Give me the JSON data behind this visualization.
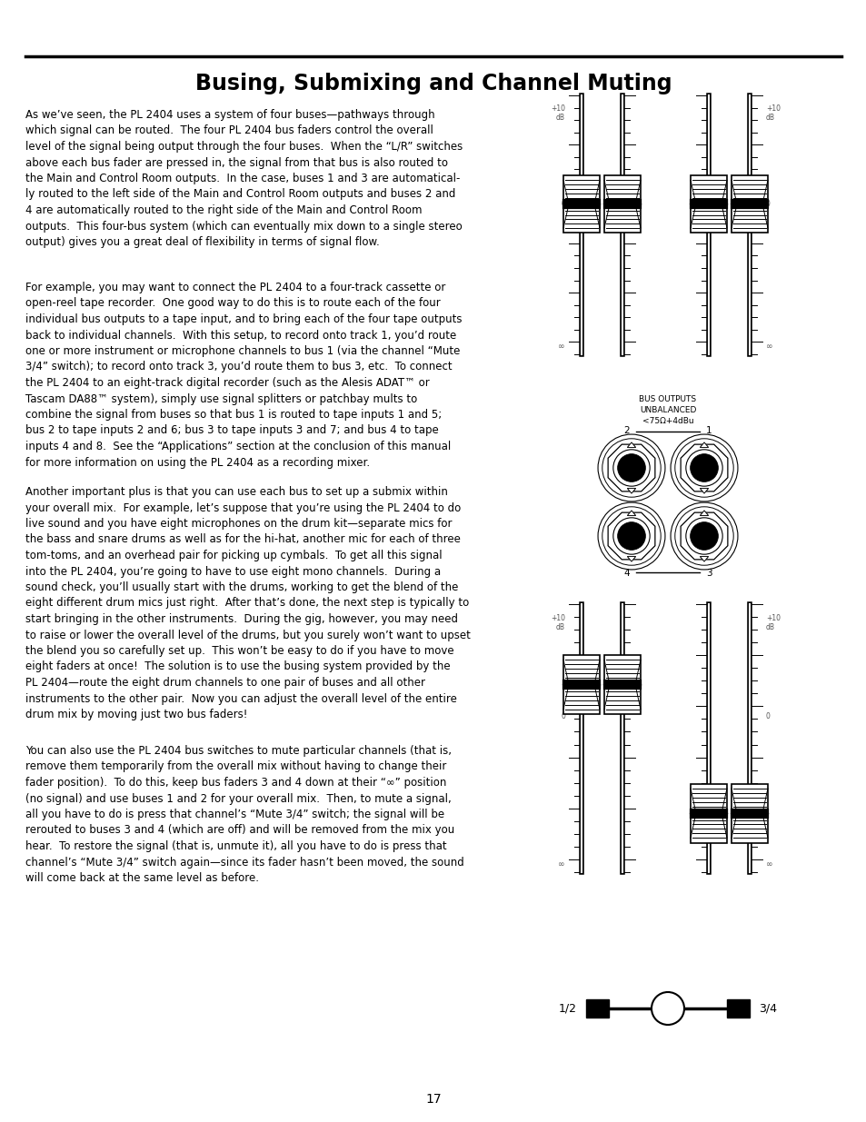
{
  "title": "Busing, Submixing and Channel Muting",
  "title_fontsize": 17,
  "page_number": "17",
  "background_color": "#ffffff",
  "text_color": "#000000",
  "para1": "As we’ve seen, the PL 2404 uses a system of four buses—pathways through\nwhich signal can be routed.  The four PL 2404 bus faders control the overall\nlevel of the signal being output through the four buses.  When the “L/R” switches\nabove each bus fader are pressed in, the signal from that bus is also routed to\nthe Main and Control Room outputs.  In the case, buses 1 and 3 are automatical-\nly routed to the left side of the Main and Control Room outputs and buses 2 and\n4 are automatically routed to the right side of the Main and Control Room\noutputs.  This four-bus system (which can eventually mix down to a single stereo\noutput) gives you a great deal of flexibility in terms of signal flow.",
  "para2": "For example, you may want to connect the PL 2404 to a four-track cassette or\nopen-reel tape recorder.  One good way to do this is to route each of the four\nindividual bus outputs to a tape input, and to bring each of the four tape outputs\nback to individual channels.  With this setup, to record onto track 1, you’d route\none or more instrument or microphone channels to bus 1 (via the channel “Mute\n3/4” switch); to record onto track 3, you’d route them to bus 3, etc.  To connect\nthe PL 2404 to an eight-track digital recorder (such as the Alesis ADAT™ or\nTascam DA88™ system), simply use signal splitters or patchbay mults to\ncombine the signal from buses so that bus 1 is routed to tape inputs 1 and 5;\nbus 2 to tape inputs 2 and 6; bus 3 to tape inputs 3 and 7; and bus 4 to tape\ninputs 4 and 8.  See the “Applications” section at the conclusion of this manual\nfor more information on using the PL 2404 as a recording mixer.",
  "para3": "Another important plus is that you can use each bus to set up a submix within\nyour overall mix.  For example, let’s suppose that you’re using the PL 2404 to do\nlive sound and you have eight microphones on the drum kit—separate mics for\nthe bass and snare drums as well as for the hi-hat, another mic for each of three\ntom-toms, and an overhead pair for picking up cymbals.  To get all this signal\ninto the PL 2404, you’re going to have to use eight mono channels.  During a\nsound check, you’ll usually start with the drums, working to get the blend of the\neight different drum mics just right.  After that’s done, the next step is typically to\nstart bringing in the other instruments.  During the gig, however, you may need\nto raise or lower the overall level of the drums, but you surely won’t want to upset\nthe blend you so carefully set up.  This won’t be easy to do if you have to move\neight faders at once!  The solution is to use the busing system provided by the\nPL 2404—route the eight drum channels to one pair of buses and all other\ninstruments to the other pair.  Now you can adjust the overall level of the entire\ndrum mix by moving just two bus faders!",
  "para4": "You can also use the PL 2404 bus switches to mute particular channels (that is,\nremove them temporarily from the overall mix without having to change their\nfader position).  To do this, keep bus faders 3 and 4 down at their “∞” position\n(no signal) and use buses 1 and 2 for your overall mix.  Then, to mute a signal,\nall you have to do is press that channel’s “Mute 3/4” switch; the signal will be\nrerouted to buses 3 and 4 (which are off) and will be removed from the mix you\nhear.  To restore the signal (that is, unmute it), all you have to do is press that\nchannel’s “Mute 3/4” switch again—since its fader hasn’t been moved, the sound\nwill come back at the same level as before.",
  "line_color": "#000000"
}
